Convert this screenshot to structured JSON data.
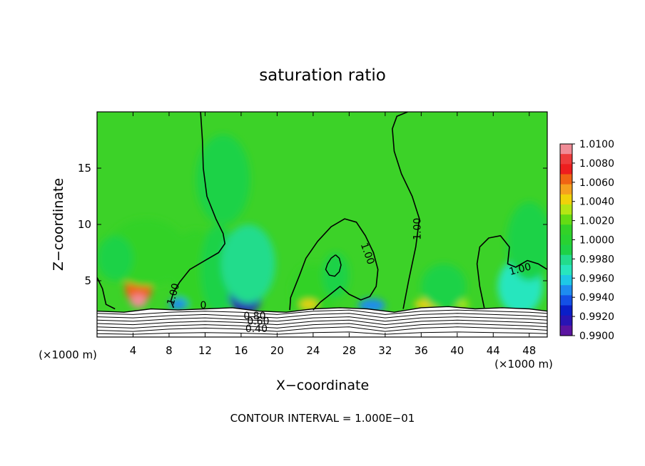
{
  "chart_data": {
    "type": "heatmap",
    "title": "saturation ratio",
    "xlabel": "X−coordinate",
    "ylabel": "Z−coordinate",
    "x_unit_left": "(×1000 m)",
    "x_unit_right": "(×1000 m)",
    "xlim": [
      0,
      50
    ],
    "ylim": [
      0,
      20
    ],
    "xticks": [
      4,
      8,
      12,
      16,
      20,
      24,
      28,
      32,
      36,
      40,
      44,
      48
    ],
    "yticks": [
      5,
      10,
      15
    ],
    "footer": "CONTOUR INTERVAL = 1.000E−01",
    "contour_labels": [
      {
        "text": "1.00",
        "x": 8.5,
        "y": 3.8,
        "angle": -75
      },
      {
        "text": "0",
        "x": 11.8,
        "y": 2.8,
        "angle": 0
      },
      {
        "text": "1.00",
        "x": 30.0,
        "y": 7.4,
        "angle": 70
      },
      {
        "text": "1.00",
        "x": 35.6,
        "y": 9.6,
        "angle": -90
      },
      {
        "text": "1.00",
        "x": 47.0,
        "y": 6.0,
        "angle": -15
      },
      {
        "text": "0.80",
        "x": 17.5,
        "y": 1.85,
        "angle": 0
      },
      {
        "text": "0.60",
        "x": 17.9,
        "y": 1.35,
        "angle": 0
      },
      {
        "text": "0.40",
        "x": 17.7,
        "y": 0.7,
        "angle": 0
      }
    ],
    "colorbar": {
      "labels": [
        "1.0100",
        "1.0080",
        "1.0060",
        "1.0040",
        "1.0020",
        "1.0000",
        "0.9980",
        "0.9960",
        "0.9940",
        "0.9920",
        "0.9900"
      ],
      "colors": [
        "#f08c96",
        "#ee3c3c",
        "#ee1e1e",
        "#f06414",
        "#f5a01e",
        "#f0d20a",
        "#b4e614",
        "#64dc14",
        "#32d228",
        "#28d232",
        "#1ed246",
        "#23dc8c",
        "#28e6be",
        "#1ec8e6",
        "#1e8cf0",
        "#1450e6",
        "#0a1ec8",
        "#2814b4",
        "#5a14a0"
      ]
    },
    "base_field_color": "#3cd228",
    "anomalies": [
      {
        "x": 4.6,
        "z": 4.4,
        "sx": 1.5,
        "sz": 1.5,
        "value": 1.0058
      },
      {
        "x": 4.6,
        "z": 3.2,
        "sx": 0.9,
        "sz": 0.6,
        "value": 1.0095
      },
      {
        "x": 5.5,
        "z": 7.5,
        "sx": 4.5,
        "sz": 3.0,
        "value": 1.001
      },
      {
        "x": 11.0,
        "z": 6.0,
        "sx": 3.0,
        "sz": 3.5,
        "value": 1.0007
      },
      {
        "x": 13.5,
        "z": 6.0,
        "sx": 2.0,
        "sz": 4.0,
        "value": 0.9985
      },
      {
        "x": 16.5,
        "z": 3.6,
        "sx": 1.8,
        "sz": 1.5,
        "value": 0.9915
      },
      {
        "x": 16.8,
        "z": 6.5,
        "sx": 3.0,
        "sz": 3.5,
        "value": 0.9975
      },
      {
        "x": 14.0,
        "z": 14.0,
        "sx": 3.0,
        "sz": 4.0,
        "value": 0.9992
      },
      {
        "x": 9.0,
        "z": 2.9,
        "sx": 1.0,
        "sz": 0.5,
        "value": 0.995
      },
      {
        "x": 24.0,
        "z": 4.0,
        "sx": 2.5,
        "sz": 2.5,
        "value": 1.0015
      },
      {
        "x": 23.5,
        "z": 2.9,
        "sx": 1.0,
        "sz": 0.4,
        "value": 1.004
      },
      {
        "x": 26.5,
        "z": 5.5,
        "sx": 1.5,
        "sz": 2.0,
        "value": 0.9985
      },
      {
        "x": 30.5,
        "z": 2.8,
        "sx": 1.5,
        "sz": 0.6,
        "value": 0.995
      },
      {
        "x": 37.0,
        "z": 2.9,
        "sx": 1.8,
        "sz": 0.5,
        "value": 1.004
      },
      {
        "x": 40.5,
        "z": 2.9,
        "sx": 0.8,
        "sz": 0.4,
        "value": 1.003
      },
      {
        "x": 47.0,
        "z": 4.5,
        "sx": 2.5,
        "sz": 2.5,
        "value": 0.997
      },
      {
        "x": 48.0,
        "z": 8.5,
        "sx": 2.5,
        "sz": 3.5,
        "value": 0.999
      },
      {
        "x": 38.5,
        "z": 4.5,
        "sx": 2.5,
        "sz": 2.0,
        "value": 0.999
      },
      {
        "x": 2.0,
        "z": 7.0,
        "sx": 2.0,
        "sz": 2.0,
        "value": 0.999
      }
    ],
    "terrain_top": [
      [
        0,
        2.3
      ],
      [
        3,
        2.2
      ],
      [
        6,
        2.5
      ],
      [
        9,
        2.4
      ],
      [
        12,
        2.5
      ],
      [
        15,
        2.6
      ],
      [
        18,
        2.3
      ],
      [
        21,
        2.2
      ],
      [
        24,
        2.5
      ],
      [
        27,
        2.6
      ],
      [
        30,
        2.5
      ],
      [
        33,
        2.2
      ],
      [
        36,
        2.6
      ],
      [
        39,
        2.7
      ],
      [
        42,
        2.5
      ],
      [
        45,
        2.6
      ],
      [
        48,
        2.5
      ],
      [
        50,
        2.3
      ]
    ],
    "contours_1_00": [
      [
        [
          0,
          5.3
        ],
        [
          0.6,
          4.3
        ],
        [
          1.0,
          2.9
        ],
        [
          2.0,
          2.5
        ]
      ],
      [
        [
          8.5,
          2.6
        ],
        [
          8.2,
          3.2
        ],
        [
          8.5,
          4.0
        ],
        [
          9.2,
          4.9
        ],
        [
          10.3,
          6.0
        ],
        [
          12.0,
          6.8
        ],
        [
          13.5,
          7.5
        ],
        [
          14.2,
          8.3
        ],
        [
          14.0,
          9.2
        ],
        [
          13.2,
          10.5
        ],
        [
          12.2,
          12.5
        ],
        [
          11.8,
          15.0
        ],
        [
          11.7,
          17.5
        ],
        [
          11.5,
          20.0
        ]
      ],
      [
        [
          21.4,
          2.4
        ],
        [
          21.5,
          3.5
        ],
        [
          22.5,
          5.5
        ],
        [
          23.2,
          7.0
        ],
        [
          24.5,
          8.5
        ],
        [
          26.0,
          9.8
        ],
        [
          27.5,
          10.5
        ],
        [
          28.8,
          10.2
        ],
        [
          29.8,
          9.0
        ],
        [
          30.7,
          7.5
        ],
        [
          31.2,
          6.0
        ],
        [
          31.0,
          4.5
        ],
        [
          30.3,
          3.6
        ],
        [
          29.3,
          3.3
        ],
        [
          28.0,
          3.8
        ],
        [
          27.0,
          4.5
        ],
        [
          25.6,
          3.6
        ],
        [
          24.8,
          3.1
        ],
        [
          24.0,
          2.4
        ]
      ],
      [
        [
          34.0,
          2.5
        ],
        [
          34.6,
          5.0
        ],
        [
          35.4,
          8.0
        ],
        [
          35.8,
          10.5
        ],
        [
          35.0,
          12.5
        ],
        [
          33.8,
          14.5
        ],
        [
          33.0,
          16.5
        ],
        [
          32.8,
          18.5
        ],
        [
          33.3,
          19.6
        ],
        [
          34.5,
          20.0
        ]
      ],
      [
        [
          43.0,
          2.6
        ],
        [
          42.5,
          4.5
        ],
        [
          42.2,
          6.5
        ],
        [
          42.5,
          8.0
        ],
        [
          43.5,
          8.8
        ],
        [
          44.8,
          9.0
        ],
        [
          45.8,
          8.0
        ],
        [
          45.6,
          6.5
        ],
        [
          46.5,
          6.2
        ],
        [
          47.8,
          6.8
        ],
        [
          49.0,
          6.5
        ],
        [
          50.0,
          6.0
        ]
      ]
    ],
    "contour_loop": [
      [
        26.5,
        7.3
      ],
      [
        26.0,
        7.0
      ],
      [
        25.6,
        6.5
      ],
      [
        25.4,
        6.0
      ],
      [
        25.8,
        5.5
      ],
      [
        26.4,
        5.4
      ],
      [
        26.9,
        5.8
      ],
      [
        27.1,
        6.4
      ],
      [
        26.9,
        7.0
      ],
      [
        26.5,
        7.3
      ]
    ],
    "terrain_lines": [
      [
        [
          0,
          2.1
        ],
        [
          4,
          2.0
        ],
        [
          8,
          2.2
        ],
        [
          12,
          2.3
        ],
        [
          16,
          2.2
        ],
        [
          20,
          2.0
        ],
        [
          24,
          2.3
        ],
        [
          28,
          2.4
        ],
        [
          32,
          2.0
        ],
        [
          36,
          2.3
        ],
        [
          40,
          2.4
        ],
        [
          44,
          2.3
        ],
        [
          48,
          2.2
        ],
        [
          50,
          2.1
        ]
      ],
      [
        [
          0,
          1.8
        ],
        [
          4,
          1.7
        ],
        [
          8,
          1.9
        ],
        [
          12,
          2.0
        ],
        [
          16,
          1.85
        ],
        [
          20,
          1.7
        ],
        [
          24,
          2.0
        ],
        [
          28,
          2.1
        ],
        [
          32,
          1.7
        ],
        [
          36,
          2.0
        ],
        [
          40,
          2.1
        ],
        [
          44,
          2.0
        ],
        [
          48,
          1.9
        ],
        [
          50,
          1.8
        ]
      ],
      [
        [
          0,
          1.5
        ],
        [
          4,
          1.4
        ],
        [
          8,
          1.6
        ],
        [
          12,
          1.7
        ],
        [
          16,
          1.55
        ],
        [
          20,
          1.4
        ],
        [
          24,
          1.7
        ],
        [
          28,
          1.8
        ],
        [
          32,
          1.4
        ],
        [
          36,
          1.7
        ],
        [
          40,
          1.8
        ],
        [
          44,
          1.7
        ],
        [
          48,
          1.6
        ],
        [
          50,
          1.5
        ]
      ],
      [
        [
          0,
          1.2
        ],
        [
          4,
          1.1
        ],
        [
          8,
          1.3
        ],
        [
          12,
          1.4
        ],
        [
          16,
          1.3
        ],
        [
          20,
          1.1
        ],
        [
          24,
          1.4
        ],
        [
          28,
          1.5
        ],
        [
          32,
          1.1
        ],
        [
          36,
          1.4
        ],
        [
          40,
          1.5
        ],
        [
          44,
          1.4
        ],
        [
          48,
          1.3
        ],
        [
          50,
          1.2
        ]
      ],
      [
        [
          0,
          0.9
        ],
        [
          4,
          0.8
        ],
        [
          8,
          1.0
        ],
        [
          12,
          1.1
        ],
        [
          16,
          1.0
        ],
        [
          20,
          0.8
        ],
        [
          24,
          1.1
        ],
        [
          28,
          1.2
        ],
        [
          32,
          0.8
        ],
        [
          36,
          1.1
        ],
        [
          40,
          1.2
        ],
        [
          44,
          1.1
        ],
        [
          48,
          1.0
        ],
        [
          50,
          0.9
        ]
      ],
      [
        [
          0,
          0.6
        ],
        [
          4,
          0.5
        ],
        [
          8,
          0.7
        ],
        [
          12,
          0.8
        ],
        [
          16,
          0.7
        ],
        [
          20,
          0.5
        ],
        [
          24,
          0.8
        ],
        [
          28,
          0.9
        ],
        [
          32,
          0.5
        ],
        [
          36,
          0.8
        ],
        [
          40,
          0.9
        ],
        [
          44,
          0.8
        ],
        [
          48,
          0.7
        ],
        [
          50,
          0.6
        ]
      ],
      [
        [
          0,
          0.3
        ],
        [
          4,
          0.25
        ],
        [
          8,
          0.35
        ],
        [
          12,
          0.4
        ],
        [
          16,
          0.35
        ],
        [
          20,
          0.25
        ],
        [
          24,
          0.4
        ],
        [
          28,
          0.45
        ],
        [
          32,
          0.25
        ],
        [
          36,
          0.4
        ],
        [
          40,
          0.45
        ],
        [
          44,
          0.4
        ],
        [
          48,
          0.35
        ],
        [
          50,
          0.3
        ]
      ]
    ]
  }
}
